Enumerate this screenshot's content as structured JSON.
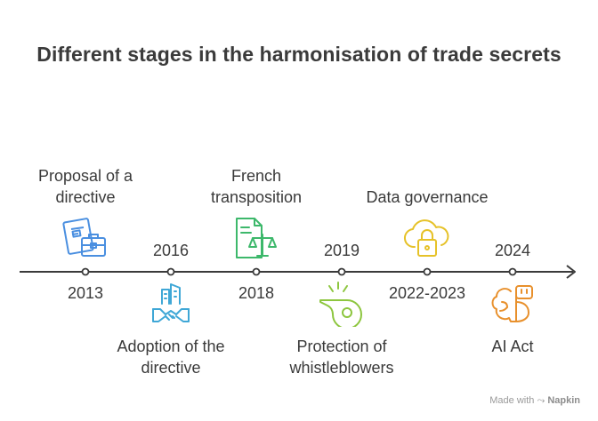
{
  "title": "Different stages in the harmonisation of trade secrets",
  "milestones": [
    {
      "year": "2013",
      "label_lines": [
        "Proposal of a",
        "directive"
      ],
      "color": "#4a8fe0",
      "icon": "briefcase-document-icon"
    },
    {
      "year": "2016",
      "label_lines": [
        "Adoption of the",
        "directive"
      ],
      "color": "#3fa7d6",
      "icon": "handshake-building-icon"
    },
    {
      "year": "2018",
      "label_lines": [
        "French",
        "transposition"
      ],
      "color": "#3db86b",
      "icon": "legal-document-scales-icon"
    },
    {
      "year": "2019",
      "label_lines": [
        "Protection of",
        "whistleblowers"
      ],
      "color": "#8dc63f",
      "icon": "whistle-icon"
    },
    {
      "year": "2022-2023",
      "label_lines": [
        "Data governance"
      ],
      "color": "#e6c229",
      "icon": "cloud-lock-icon"
    },
    {
      "year": "2024",
      "label_lines": [
        "AI Act"
      ],
      "color": "#e8902c",
      "icon": "robot-brain-icon"
    }
  ],
  "footer": {
    "made_with": "Made with",
    "brand": "Napkin"
  }
}
